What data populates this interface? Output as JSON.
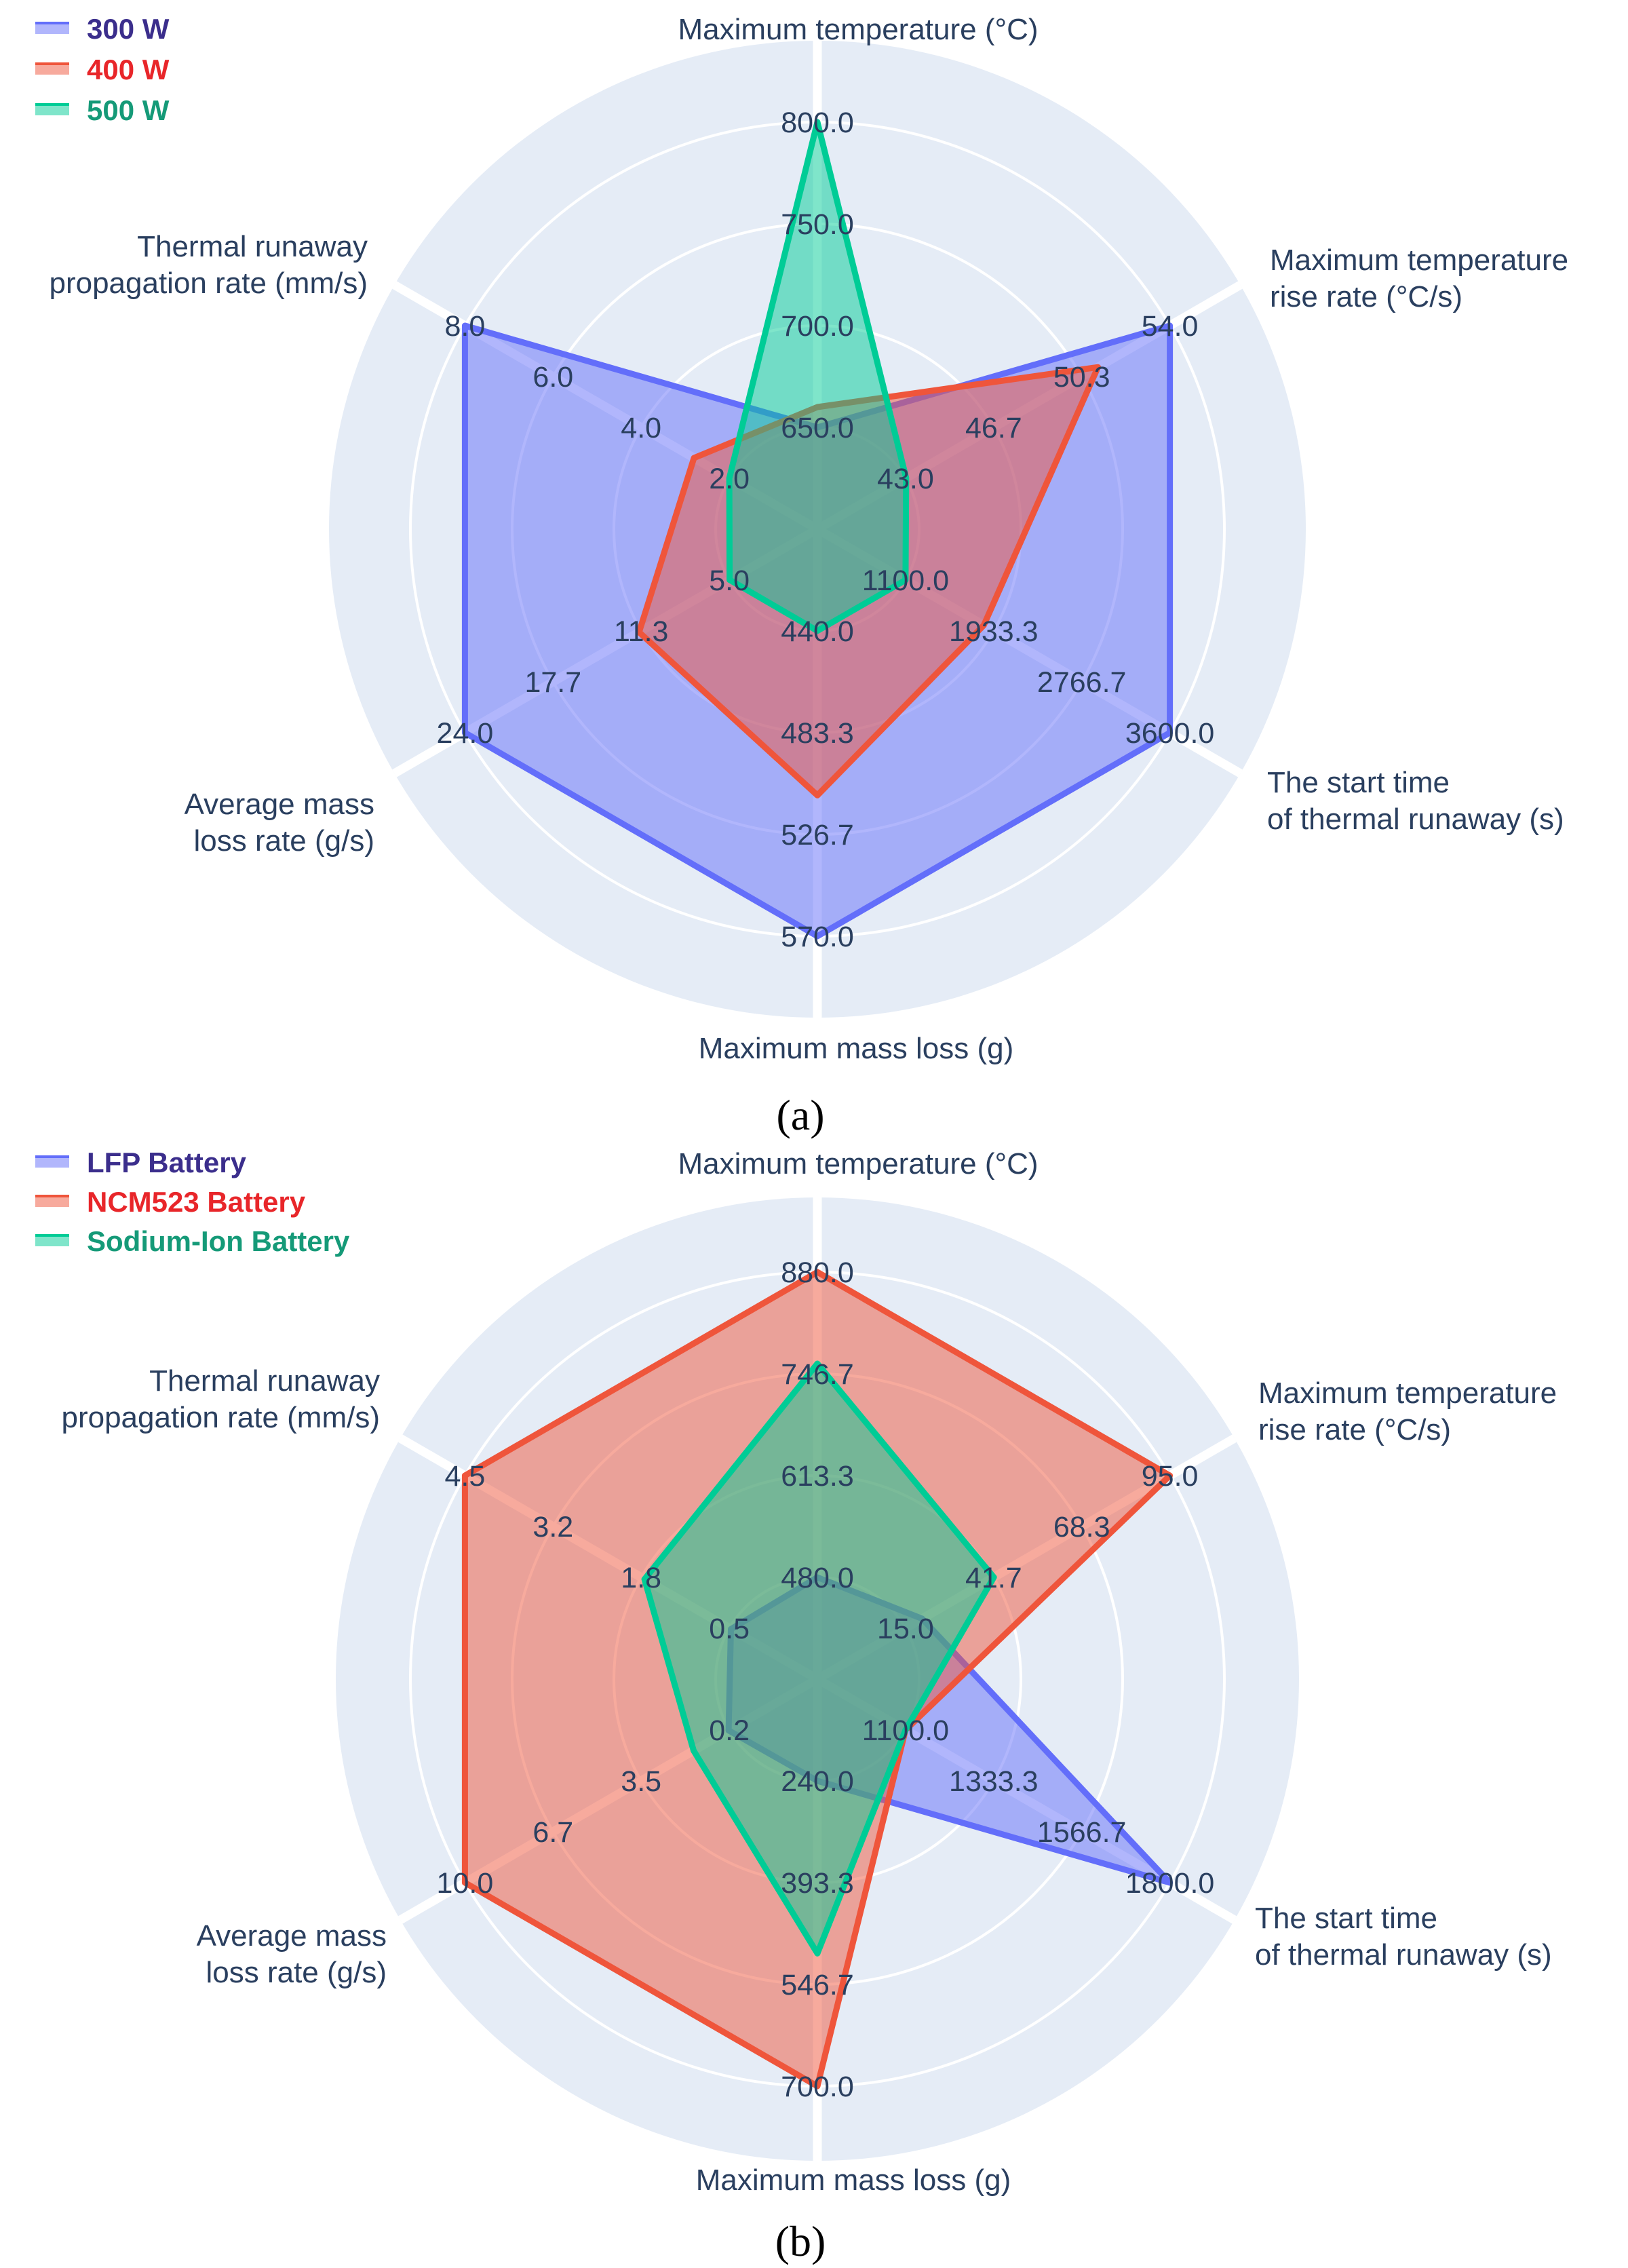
{
  "chart_data": [
    {
      "type": "radar",
      "panel_label": "(a)",
      "axes": [
        {
          "title": "Maximum temperature (°C)",
          "range": [
            600,
            800
          ],
          "ticks": [
            "650.0",
            "700.0",
            "750.0",
            "800.0"
          ]
        },
        {
          "title": "Maximum temperature rise rate (°C/s)",
          "range": [
            39.3,
            54
          ],
          "ticks": [
            "43.0",
            "46.7",
            "50.3",
            "54.0"
          ]
        },
        {
          "title": "The start time of thermal runaway (s)",
          "range": [
            266.7,
            3600
          ],
          "ticks": [
            "1100.0",
            "1933.3",
            "2766.7",
            "3600.0"
          ]
        },
        {
          "title": "Maximum mass loss (g)",
          "range": [
            396.7,
            570
          ],
          "ticks": [
            "440.0",
            "483.3",
            "526.7",
            "570.0"
          ]
        },
        {
          "title": "Average mass loss rate (g/s)",
          "range": [
            -1.3,
            24
          ],
          "ticks": [
            "5.0",
            "11.3",
            "17.7",
            "24.0"
          ]
        },
        {
          "title": "Thermal runaway propagation rate (mm/s)",
          "range": [
            0,
            8
          ],
          "ticks": [
            "2.0",
            "4.0",
            "6.0",
            "8.0"
          ]
        }
      ],
      "series": [
        {
          "name": "300 W",
          "color": "#636efa",
          "values": [
            650,
            54,
            3600,
            570,
            24,
            8
          ]
        },
        {
          "name": "400 W",
          "color": "#ef553b",
          "values": [
            660,
            51,
            1840,
            510,
            11.5,
            2.8
          ]
        },
        {
          "name": "500 W",
          "color": "#00cc96",
          "values": [
            800,
            43,
            1100,
            440,
            5,
            2
          ]
        }
      ]
    },
    {
      "type": "radar",
      "panel_label": "(b)",
      "axes": [
        {
          "title": "Maximum temperature (°C)",
          "range": [
            346.7,
            880
          ],
          "ticks": [
            "480.0",
            "613.3",
            "746.7",
            "880.0"
          ]
        },
        {
          "title": "Maximum temperature rise rate (°C/s)",
          "range": [
            -11.7,
            95
          ],
          "ticks": [
            "15.0",
            "41.7",
            "68.3",
            "95.0"
          ]
        },
        {
          "title": "The start time of thermal runaway (s)",
          "range": [
            866.7,
            1800
          ],
          "ticks": [
            "1100.0",
            "1333.3",
            "1566.7",
            "1800.0"
          ]
        },
        {
          "title": "Maximum mass loss (g)",
          "range": [
            86.7,
            700
          ],
          "ticks": [
            "240.0",
            "393.3",
            "546.7",
            "700.0"
          ]
        },
        {
          "title": "Average mass loss rate (g/s)",
          "range": [
            -3.1,
            10
          ],
          "ticks": [
            "0.2",
            "3.5",
            "6.7",
            "10.0"
          ]
        },
        {
          "title": "Thermal runaway propagation rate (mm/s)",
          "range": [
            -0.8,
            4.5
          ],
          "ticks": [
            "0.5",
            "1.8",
            "3.2",
            "4.5"
          ]
        }
      ],
      "series": [
        {
          "name": "LFP Battery",
          "color": "#636efa",
          "values": [
            480,
            20,
            1800,
            240,
            0.2,
            0.5
          ]
        },
        {
          "name": "NCM523 Battery",
          "color": "#ef553b",
          "values": [
            880,
            95,
            1100,
            700,
            10,
            4.5
          ]
        },
        {
          "name": "Sodium-Ion Battery",
          "color": "#00cc96",
          "values": [
            760,
            41.7,
            1100,
            500,
            1.5,
            1.8
          ]
        }
      ]
    }
  ],
  "chart_titles": [
    {
      "axis_titles": [
        [
          "Maximum temperature (°C)"
        ],
        [
          "Maximum temperature",
          "rise rate (°C/s)"
        ],
        [
          "The start time",
          "of thermal runaway (s)"
        ],
        [
          "Maximum mass loss (g)"
        ],
        [
          "Average mass",
          "loss rate (g/s)"
        ],
        [
          "Thermal runaway",
          "propagation rate (mm/s)"
        ]
      ]
    },
    {
      "axis_titles": [
        [
          "Maximum temperature (°C)"
        ],
        [
          "Maximum temperature",
          "rise rate (°C/s)"
        ],
        [
          "The start time",
          "of thermal runaway (s)"
        ],
        [
          "Maximum mass loss (g)"
        ],
        [
          "Average mass",
          "loss rate (g/s)"
        ],
        [
          "Thermal runaway",
          "propagation rate (mm/s)"
        ]
      ]
    }
  ],
  "colors": {
    "polar_bg": "#e5ecf6",
    "grid": "#ffffff",
    "text": "#2a3f5f",
    "legend_text": [
      "#3b2e8c",
      "#e8262a",
      "#159a78"
    ]
  }
}
